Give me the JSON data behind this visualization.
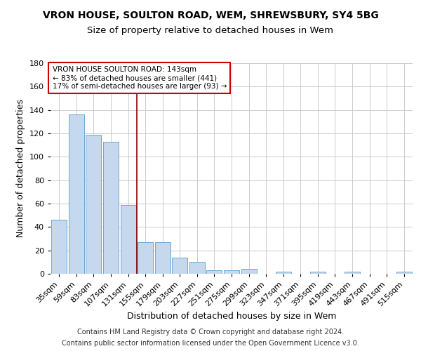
{
  "title1": "VRON HOUSE, SOULTON ROAD, WEM, SHREWSBURY, SY4 5BG",
  "title2": "Size of property relative to detached houses in Wem",
  "xlabel": "Distribution of detached houses by size in Wem",
  "ylabel": "Number of detached properties",
  "categories": [
    "35sqm",
    "59sqm",
    "83sqm",
    "107sqm",
    "131sqm",
    "155sqm",
    "179sqm",
    "203sqm",
    "227sqm",
    "251sqm",
    "275sqm",
    "299sqm",
    "323sqm",
    "347sqm",
    "371sqm",
    "395sqm",
    "419sqm",
    "443sqm",
    "467sqm",
    "491sqm",
    "515sqm"
  ],
  "values": [
    46,
    136,
    119,
    113,
    59,
    27,
    27,
    14,
    10,
    3,
    3,
    4,
    0,
    2,
    0,
    2,
    0,
    2,
    0,
    0,
    2
  ],
  "bar_color": "#c5d8ed",
  "bar_edge_color": "#6fa8d0",
  "vline_x": 4.5,
  "vline_color": "#8b0000",
  "ylim": [
    0,
    180
  ],
  "yticks": [
    0,
    20,
    40,
    60,
    80,
    100,
    120,
    140,
    160,
    180
  ],
  "annotation_box_text": "VRON HOUSE SOULTON ROAD: 143sqm\n← 83% of detached houses are smaller (441)\n17% of semi-detached houses are larger (93) →",
  "annotation_box_color": "#ffffff",
  "annotation_box_edge": "#cc0000",
  "footer1": "Contains HM Land Registry data © Crown copyright and database right 2024.",
  "footer2": "Contains public sector information licensed under the Open Government Licence v3.0.",
  "background_color": "#ffffff",
  "grid_color": "#cccccc",
  "title_fontsize": 10,
  "subtitle_fontsize": 9.5,
  "axis_label_fontsize": 9,
  "tick_fontsize": 8,
  "annotation_fontsize": 7.5,
  "footer_fontsize": 7
}
